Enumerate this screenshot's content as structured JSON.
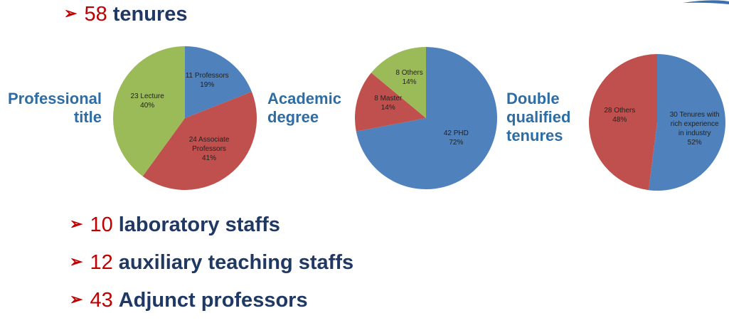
{
  "bullets": [
    {
      "number": "58",
      "text": "tenures"
    },
    {
      "number": "10",
      "text": "laboratory staffs"
    },
    {
      "number": "12",
      "text": "auxiliary teaching staffs"
    },
    {
      "number": "43",
      "text": "Adjunct professors"
    }
  ],
  "chart_data": [
    {
      "type": "pie",
      "title": "Professional title",
      "categories": [
        "11 Professors",
        "24 Associate Professors",
        "23 Lecture"
      ],
      "values": [
        19,
        41,
        40
      ],
      "value_labels": [
        "19%",
        "41%",
        "40%"
      ],
      "colors": [
        "#4f81bd",
        "#c0504d",
        "#9bbb59"
      ]
    },
    {
      "type": "pie",
      "title": "Academic degree",
      "categories": [
        "42 PHD",
        "8 Master",
        "8  Others"
      ],
      "values": [
        72,
        14,
        14
      ],
      "value_labels": [
        "72%",
        "14%",
        "14%"
      ],
      "colors": [
        "#4f81bd",
        "#c0504d",
        "#9bbb59"
      ]
    },
    {
      "type": "pie",
      "title": "Double qualified tenures",
      "categories": [
        "30 Tenures with rich experience in industry",
        "28 Others"
      ],
      "values": [
        52,
        48
      ],
      "value_labels": [
        "52%",
        "48%"
      ],
      "colors": [
        "#4f81bd",
        "#c0504d"
      ]
    }
  ]
}
